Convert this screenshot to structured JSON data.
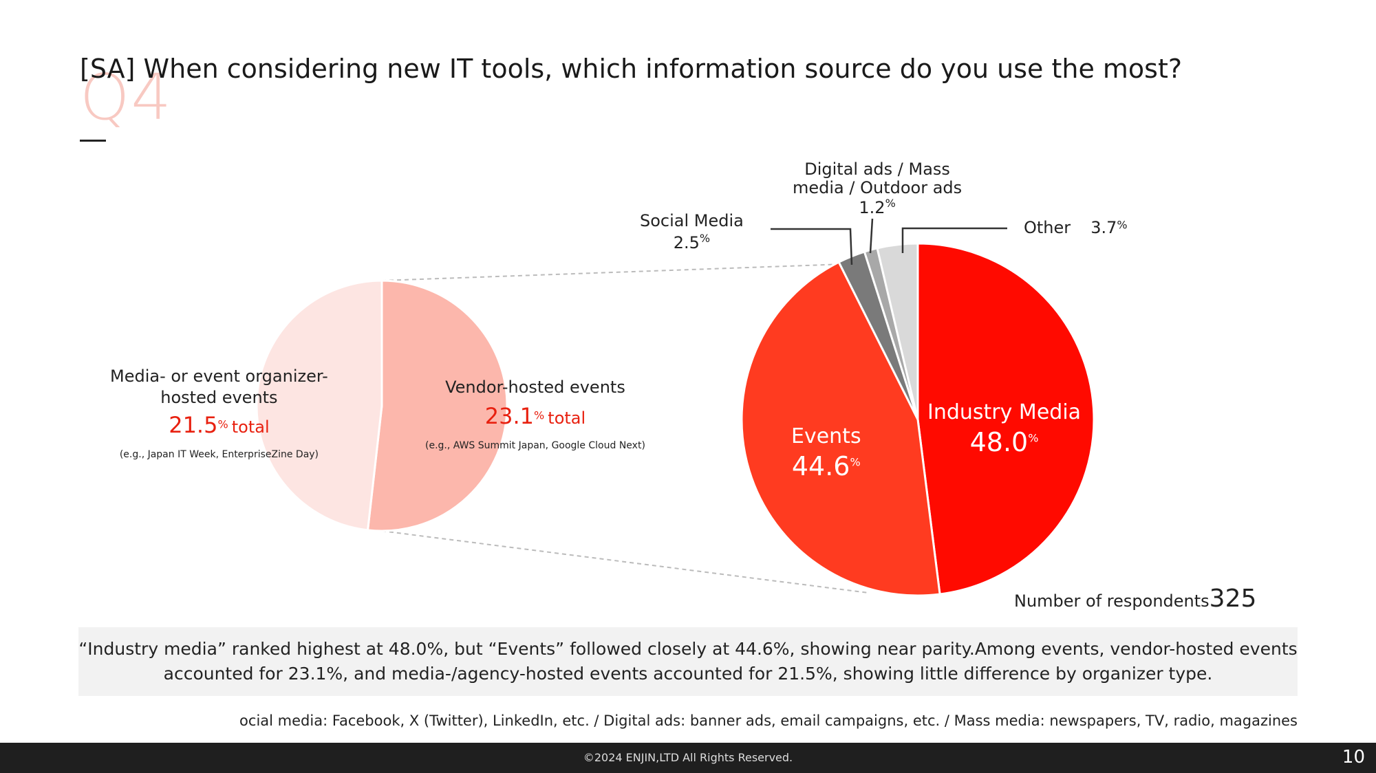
{
  "header": {
    "q_label": "Q4",
    "title": "[SA] When considering new IT tools, which information source do you use the most?"
  },
  "chart_data": [
    {
      "type": "pie",
      "slices": [
        {
          "label": "Industry Media",
          "value": 48.0,
          "color": "#ff0a00"
        },
        {
          "label": "Events",
          "value": 44.6,
          "color": "#ff3b20"
        },
        {
          "label": "Social Media",
          "value": 2.5,
          "color": "#7a7a7a"
        },
        {
          "label": "Digital ads / Mass media / Outdoor ads",
          "value": 1.2,
          "color": "#a8a8a8"
        },
        {
          "label": "Other",
          "value": 3.7,
          "color": "#d9d9d9"
        }
      ]
    },
    {
      "type": "pie",
      "slices": [
        {
          "label": "Vendor-hosted events",
          "value": 23.1,
          "color": "#fcb7ac"
        },
        {
          "label": "Media- or event organizer-hosted events",
          "value": 21.5,
          "color": "#fde5e2"
        }
      ]
    }
  ],
  "labels": {
    "industry_name": "Industry Media",
    "industry_val": "48.0",
    "events_name": "Events",
    "events_val": "44.6",
    "social_name": "Social Media",
    "social_val": "2.5",
    "digital_line1": "Digital ads / Mass",
    "digital_line2": "media / Outdoor ads",
    "digital_val": "1.2",
    "other_name": "Other",
    "other_val": "3.7",
    "media_line1": "Media- or event organizer-",
    "media_line2": "hosted events",
    "media_val": "21.5",
    "media_total": "total",
    "media_eg": "(e.g., Japan IT Week, EnterpriseZine Day)",
    "vendor_name": "Vendor-hosted events",
    "vendor_val": "23.1",
    "vendor_total": "total",
    "vendor_eg": "(e.g., AWS Summit Japan, Google Cloud Next)",
    "pct_unit": "%"
  },
  "respondents": {
    "label": "Number of respondents",
    "value": "325"
  },
  "note": {
    "line1": "“Industry media” ranked highest at 48.0%, but “Events” followed closely at 44.6%, showing near parity.Among events, vendor-hosted events",
    "line2": "accounted for 23.1%, and media-/agency-hosted events accounted for 21.5%, showing little difference by organizer type."
  },
  "footnote": "ocial media: Facebook, X (Twitter), LinkedIn, etc. / Digital ads: banner ads, email campaigns, etc. / Mass media: newspapers, TV, radio, magazines",
  "footer": {
    "copyright": "©2024 ENJIN,LTD  All Rights Reserved.",
    "page": "10"
  }
}
